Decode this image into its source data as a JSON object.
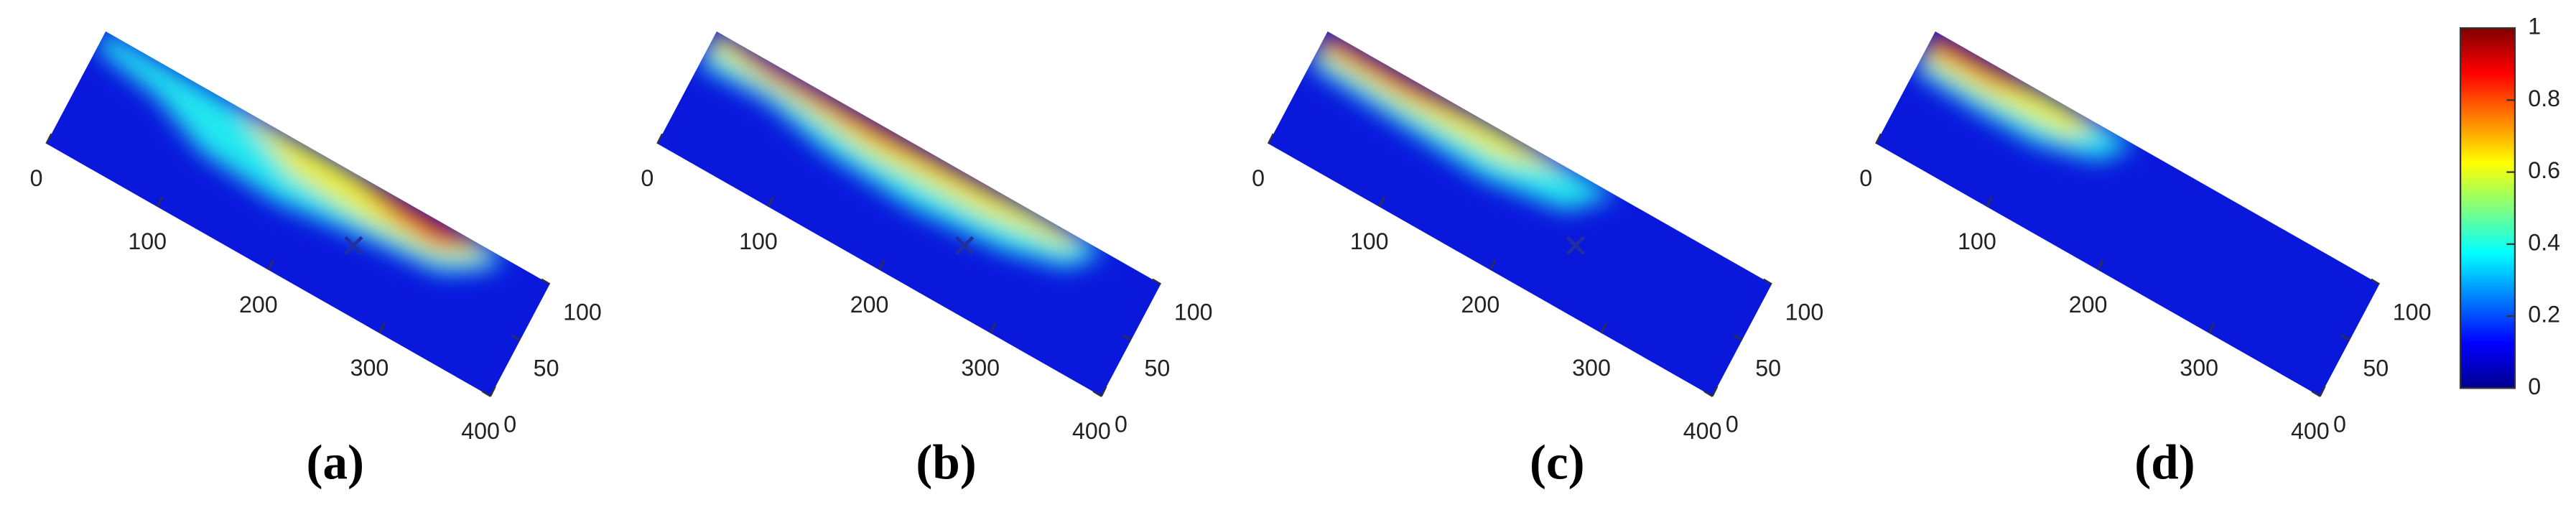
{
  "chart_data": [
    {
      "type": "surface-map",
      "label": "(a)",
      "xlim": [
        0,
        400
      ],
      "xticks": [
        0,
        100,
        200,
        300,
        400
      ],
      "ylim": [
        0,
        100
      ],
      "yticks": [
        0,
        50,
        100
      ],
      "marker": [
        250,
        50
      ]
    },
    {
      "type": "surface-map",
      "label": "(b)",
      "xlim": [
        0,
        400
      ],
      "xticks": [
        0,
        100,
        200,
        300,
        400
      ],
      "ylim": [
        0,
        100
      ],
      "yticks": [
        0,
        50,
        100
      ],
      "marker": [
        250,
        50
      ]
    },
    {
      "type": "surface-map",
      "label": "(c)",
      "xlim": [
        0,
        400
      ],
      "xticks": [
        0,
        100,
        200,
        300,
        400
      ],
      "ylim": [
        0,
        100
      ],
      "yticks": [
        0,
        50,
        100
      ],
      "marker": [
        250,
        50
      ]
    },
    {
      "type": "surface-map",
      "label": "(d)",
      "xlim": [
        0,
        400
      ],
      "xticks": [
        0,
        100,
        200,
        300,
        400
      ],
      "ylim": [
        0,
        100
      ],
      "yticks": [
        0,
        50,
        100
      ]
    },
    {
      "type": "colorbar",
      "zlim": [
        0,
        1
      ],
      "zticks": [
        0,
        0.2,
        0.4,
        0.6,
        0.8,
        1
      ]
    }
  ]
}
